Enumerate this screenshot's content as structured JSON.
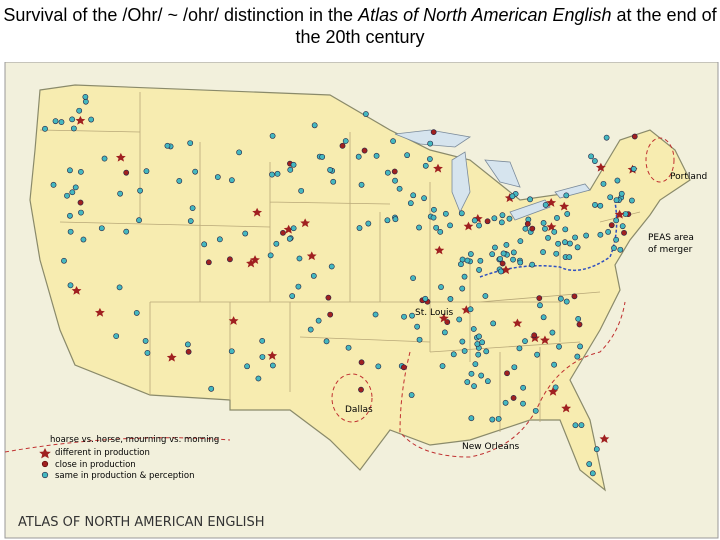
{
  "title": {
    "before": "Survival of the  /Ohr/ ~ /ohr/ distinction in the ",
    "italic": "Atlas of North American English",
    "after": " at the end of the 20th century"
  },
  "map": {
    "labels": {
      "portland": "Portland",
      "peas_line1": "PEAS area",
      "peas_line2": "of merger",
      "st_louis": "St. Louis",
      "dallas": "Dallas",
      "new_orleans": "New Orleans"
    },
    "legend": {
      "heading": "hoarse vs. horse, mourning vs. morning",
      "items": [
        "different in production",
        "close in production",
        "same in production & perception"
      ]
    },
    "footer": "ATLAS OF NORTH AMERICAN ENGLISH"
  }
}
